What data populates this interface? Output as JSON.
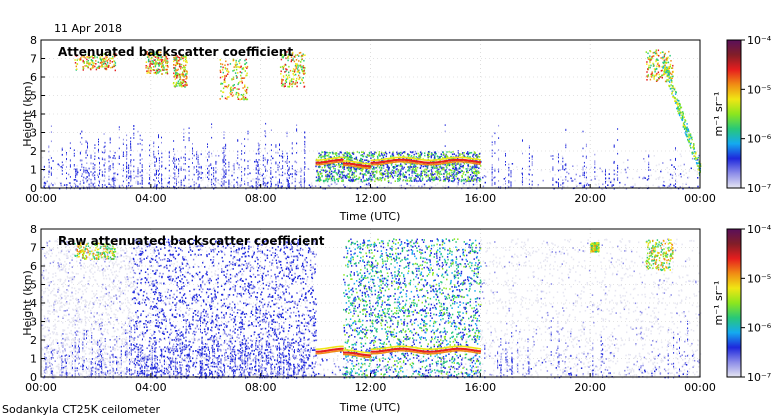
{
  "header": {
    "date": "11 Apr 2018"
  },
  "footer": {
    "instrument": "Sodankyla CT25K ceilometer"
  },
  "colorbar": {
    "unit": "m⁻¹ sr⁻¹",
    "tick_labels": [
      "10⁻⁴",
      "10⁻⁵",
      "10⁻⁶",
      "10⁻⁷"
    ],
    "colors": [
      "#e6e6f2",
      "#8c8ce8",
      "#1e28dc",
      "#14aaf0",
      "#28c878",
      "#8ce61e",
      "#f0e614",
      "#f08c14",
      "#e61e1e",
      "#821e28",
      "#5a0f5a"
    ]
  },
  "chart_data": [
    {
      "type": "heatmap",
      "title": "Attenuated backscatter coefficient",
      "xlabel": "Time (UTC)",
      "ylabel": "Height (km)",
      "x_ticks": [
        "00:00",
        "04:00",
        "08:00",
        "12:00",
        "16:00",
        "20:00",
        "00:00"
      ],
      "y_ticks": [
        "0",
        "1",
        "2",
        "3",
        "4",
        "5",
        "6",
        "7",
        "8"
      ],
      "xlim_hours": [
        0,
        24
      ],
      "ylim_km": [
        0,
        8
      ],
      "colorscale_log10": [
        -7,
        -4
      ],
      "cloud_layer": {
        "start_h": 10.0,
        "end_h": 16.0,
        "height_km": 1.5
      },
      "high_cloud_patches": [
        {
          "start_h": 1.2,
          "end_h": 2.7,
          "bottom_km": 6.4,
          "top_km": 7.3
        },
        {
          "start_h": 3.8,
          "end_h": 4.6,
          "bottom_km": 6.2,
          "top_km": 7.4
        },
        {
          "start_h": 4.8,
          "end_h": 5.3,
          "bottom_km": 5.5,
          "top_km": 7.2
        },
        {
          "start_h": 6.5,
          "end_h": 7.5,
          "bottom_km": 4.8,
          "top_km": 7.0
        },
        {
          "start_h": 8.7,
          "end_h": 9.6,
          "bottom_km": 5.5,
          "top_km": 7.4
        },
        {
          "start_h": 22.0,
          "end_h": 23.0,
          "bottom_km": 5.8,
          "top_km": 7.5
        }
      ]
    },
    {
      "type": "heatmap",
      "title": "Raw attenuated backscatter coefficient",
      "xlabel": "Time (UTC)",
      "ylabel": "Height (km)",
      "x_ticks": [
        "00:00",
        "04:00",
        "08:00",
        "12:00",
        "16:00",
        "20:00",
        "00:00"
      ],
      "y_ticks": [
        "0",
        "1",
        "2",
        "3",
        "4",
        "5",
        "6",
        "7",
        "8"
      ],
      "xlim_hours": [
        0,
        24
      ],
      "ylim_km": [
        0,
        8
      ],
      "colorscale_log10": [
        -7,
        -4
      ],
      "cloud_layer": {
        "start_h": 10.0,
        "end_h": 16.0,
        "height_km": 1.5
      },
      "noise_regions": [
        {
          "start_h": 3.3,
          "end_h": 10.0,
          "level": "blue"
        },
        {
          "start_h": 11.0,
          "end_h": 16.0,
          "level": "green"
        }
      ]
    }
  ]
}
